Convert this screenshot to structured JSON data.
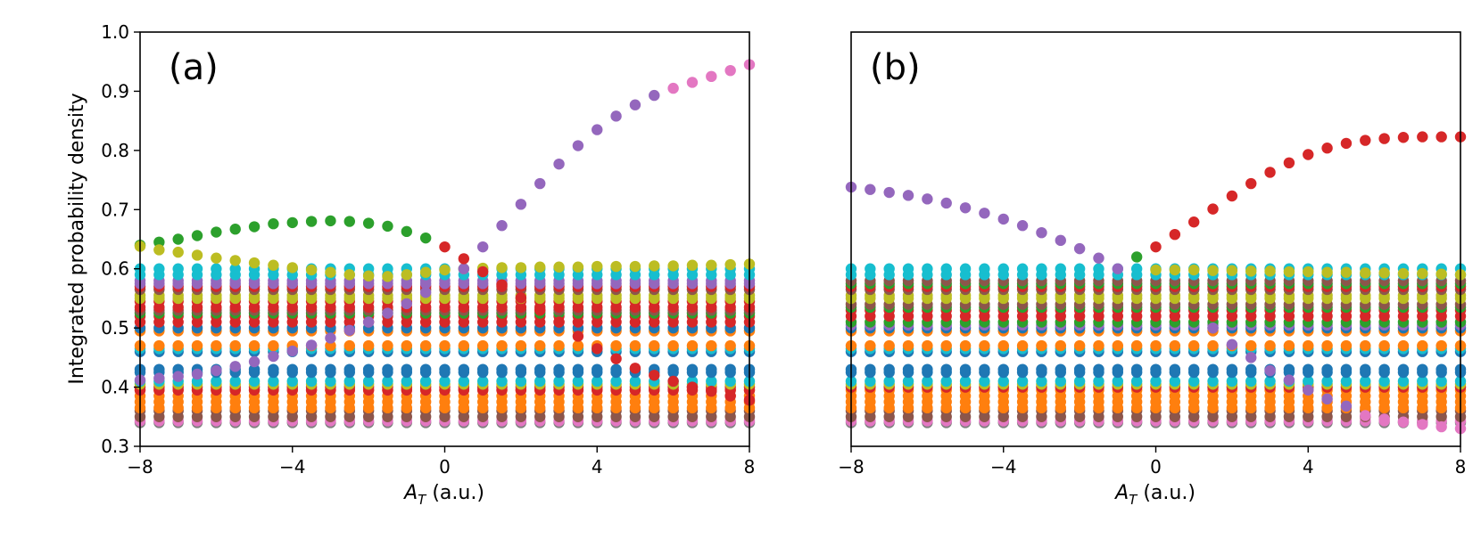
{
  "chart_data": [
    {
      "type": "scatter",
      "panel_label": "(a)",
      "xlabel_base": "A",
      "xlabel_sub": "T",
      "xlabel_unit": " (a.u.)",
      "ylabel": "Integrated probability density",
      "xlim": [
        -8,
        8
      ],
      "ylim": [
        0.3,
        1.0
      ],
      "xticks": [
        -8,
        -4,
        0,
        4,
        8
      ],
      "xtick_labels": [
        "−8",
        "−4",
        "0",
        "4",
        "8"
      ],
      "yticks": [
        0.3,
        0.4,
        0.5,
        0.6,
        0.7,
        0.8,
        0.9,
        1.0
      ],
      "ytick_labels": [
        "0.3",
        "0.4",
        "0.5",
        "0.6",
        "0.7",
        "0.8",
        "0.9",
        "1.0"
      ],
      "bands": [
        {
          "color": "#7f7f7f",
          "values": [
            0.34
          ]
        },
        {
          "color": "#e377c2",
          "values": [
            0.343
          ]
        },
        {
          "color": "#8c564b",
          "values": [
            0.35,
            0.36
          ]
        },
        {
          "color": "#ff7f0e",
          "values": [
            0.365,
            0.375,
            0.385,
            0.395
          ]
        },
        {
          "color": "#d62728",
          "values": [
            0.395,
            0.4
          ]
        },
        {
          "color": "#bcbd22",
          "values": [
            0.405
          ]
        },
        {
          "color": "#17becf",
          "values": [
            0.41
          ]
        },
        {
          "color": "#1f77b4",
          "values": [
            0.425,
            0.43,
            0.46
          ]
        },
        {
          "color": "#17becf",
          "values": [
            0.465
          ]
        },
        {
          "color": "#ff7f0e",
          "values": [
            0.47,
            0.495
          ]
        },
        {
          "color": "#1f77b4",
          "values": [
            0.5
          ]
        },
        {
          "color": "#d62728",
          "values": [
            0.51,
            0.52
          ]
        },
        {
          "color": "#2ca02c",
          "values": [
            0.525
          ]
        },
        {
          "color": "#8c564b",
          "values": [
            0.53
          ]
        },
        {
          "color": "#d62728",
          "values": [
            0.535,
            0.545
          ]
        },
        {
          "color": "#bcbd22",
          "values": [
            0.55,
            0.555
          ]
        },
        {
          "color": "#8c564b",
          "values": [
            0.565
          ]
        },
        {
          "color": "#d62728",
          "values": [
            0.57
          ]
        },
        {
          "color": "#9467bd",
          "values": [
            0.575,
            0.58
          ]
        },
        {
          "color": "#17becf",
          "values": [
            0.59,
            0.6
          ]
        }
      ],
      "series": [
        {
          "name": "green-upper",
          "color": "#2ca02c",
          "x": [
            -8,
            -7.5,
            -7,
            -6.5,
            -6,
            -5.5,
            -5,
            -4.5,
            -4,
            -3.5,
            -3,
            -2.5,
            -2,
            -1.5,
            -1,
            -0.5
          ],
          "y": [
            0.64,
            0.645,
            0.65,
            0.656,
            0.662,
            0.667,
            0.671,
            0.676,
            0.678,
            0.68,
            0.681,
            0.68,
            0.677,
            0.672,
            0.663,
            0.652
          ]
        },
        {
          "name": "olive-dip",
          "color": "#bcbd22",
          "x": [
            -8,
            -7.5,
            -7,
            -6.5,
            -6,
            -5.5,
            -5,
            -4.5,
            -4,
            -3.5,
            -3,
            -2.5,
            -2,
            -1.5,
            -1,
            -0.5,
            0,
            0.5,
            1,
            1.5,
            2,
            2.5,
            3,
            3.5,
            4,
            4.5,
            5,
            5.5,
            6,
            6.5,
            7,
            7.5,
            8
          ],
          "y": [
            0.638,
            0.632,
            0.628,
            0.623,
            0.618,
            0.614,
            0.61,
            0.606,
            0.602,
            0.598,
            0.594,
            0.59,
            0.588,
            0.587,
            0.59,
            0.594,
            0.598,
            0.6,
            0.601,
            0.602,
            0.602,
            0.603,
            0.603,
            0.603,
            0.604,
            0.604,
            0.604,
            0.605,
            0.605,
            0.606,
            0.606,
            0.607,
            0.608
          ]
        },
        {
          "name": "purple-curve",
          "color": "#9467bd",
          "x": [
            -8,
            -7.5,
            -7,
            -6.5,
            -6,
            -5.5,
            -5,
            -4.5,
            -4,
            -3.5,
            -3,
            -2.5,
            -2,
            -1.5,
            -1,
            -0.5,
            0.5,
            1,
            1.5,
            2,
            2.5,
            3,
            3.5,
            4,
            4.5,
            5,
            5.5
          ],
          "y": [
            0.412,
            0.415,
            0.418,
            0.422,
            0.428,
            0.435,
            0.443,
            0.452,
            0.461,
            0.471,
            0.483,
            0.496,
            0.51,
            0.525,
            0.541,
            0.56,
            0.6,
            0.637,
            0.673,
            0.709,
            0.744,
            0.777,
            0.808,
            0.835,
            0.858,
            0.877,
            0.893
          ]
        },
        {
          "name": "pink-tail",
          "color": "#e377c2",
          "x": [
            6,
            6.5,
            7,
            7.5,
            8
          ],
          "y": [
            0.905,
            0.915,
            0.925,
            0.935,
            0.945
          ]
        },
        {
          "name": "red-descent",
          "color": "#d62728",
          "x": [
            0,
            0.5,
            1,
            1.5,
            2,
            2.5,
            3,
            3.5,
            4,
            4.5,
            5,
            5.5,
            6,
            6.5,
            7,
            7.5,
            8
          ],
          "y": [
            0.637,
            0.617,
            0.595,
            0.573,
            0.551,
            0.53,
            0.51,
            0.486,
            0.465,
            0.448,
            0.432,
            0.42,
            0.41,
            0.4,
            0.393,
            0.385,
            0.378
          ]
        }
      ]
    },
    {
      "type": "scatter",
      "panel_label": "(b)",
      "xlabel_base": "A",
      "xlabel_sub": "T",
      "xlabel_unit": " (a.u.)",
      "ylabel": "",
      "xlim": [
        -8,
        8
      ],
      "ylim": [
        0.3,
        1.0
      ],
      "xticks": [
        -8,
        -4,
        0,
        4,
        8
      ],
      "xtick_labels": [
        "−8",
        "−4",
        "0",
        "4",
        "8"
      ],
      "yticks": [],
      "ytick_labels": [],
      "bands": [
        {
          "color": "#7f7f7f",
          "values": [
            0.34
          ]
        },
        {
          "color": "#e377c2",
          "values": [
            0.343
          ]
        },
        {
          "color": "#8c564b",
          "values": [
            0.35,
            0.36
          ]
        },
        {
          "color": "#ff7f0e",
          "values": [
            0.365,
            0.375,
            0.385,
            0.395
          ]
        },
        {
          "color": "#d62728",
          "values": [
            0.4
          ]
        },
        {
          "color": "#bcbd22",
          "values": [
            0.405
          ]
        },
        {
          "color": "#17becf",
          "values": [
            0.41
          ]
        },
        {
          "color": "#1f77b4",
          "values": [
            0.425,
            0.43,
            0.46
          ]
        },
        {
          "color": "#17becf",
          "values": [
            0.465
          ]
        },
        {
          "color": "#ff7f0e",
          "values": [
            0.47,
            0.495
          ]
        },
        {
          "color": "#1f77b4",
          "values": [
            0.5
          ]
        },
        {
          "color": "#9467bd",
          "values": [
            0.505
          ]
        },
        {
          "color": "#2ca02c",
          "values": [
            0.51
          ]
        },
        {
          "color": "#d62728",
          "values": [
            0.52,
            0.53
          ]
        },
        {
          "color": "#2ca02c",
          "values": [
            0.535
          ]
        },
        {
          "color": "#8c564b",
          "values": [
            0.54
          ]
        },
        {
          "color": "#bcbd22",
          "values": [
            0.55,
            0.555
          ]
        },
        {
          "color": "#8c564b",
          "values": [
            0.565
          ]
        },
        {
          "color": "#d62728",
          "values": [
            0.57
          ]
        },
        {
          "color": "#2ca02c",
          "values": [
            0.575
          ]
        },
        {
          "color": "#8c564b",
          "values": [
            0.58
          ]
        },
        {
          "color": "#17becf",
          "values": [
            0.59,
            0.6
          ]
        }
      ],
      "series": [
        {
          "name": "purple-descent",
          "color": "#9467bd",
          "x": [
            -8,
            -7.5,
            -7,
            -6.5,
            -6,
            -5.5,
            -5,
            -4.5,
            -4,
            -3.5,
            -3,
            -2.5,
            -2,
            -1.5,
            -1
          ],
          "y": [
            0.738,
            0.734,
            0.729,
            0.724,
            0.718,
            0.711,
            0.703,
            0.694,
            0.684,
            0.673,
            0.661,
            0.648,
            0.634,
            0.618,
            0.6
          ]
        },
        {
          "name": "green-link",
          "color": "#2ca02c",
          "x": [
            -0.5
          ],
          "y": [
            0.62
          ]
        },
        {
          "name": "red-rise",
          "color": "#d62728",
          "x": [
            0,
            0.5,
            1,
            1.5,
            2,
            2.5,
            3,
            3.5,
            4,
            4.5,
            5,
            5.5,
            6,
            6.5,
            7,
            7.5,
            8
          ],
          "y": [
            0.637,
            0.658,
            0.679,
            0.701,
            0.723,
            0.744,
            0.763,
            0.779,
            0.793,
            0.804,
            0.812,
            0.817,
            0.82,
            0.822,
            0.823,
            0.823,
            0.823
          ]
        },
        {
          "name": "olive-top",
          "color": "#bcbd22",
          "x": [
            0,
            0.5,
            1,
            1.5,
            2,
            2.5,
            3,
            3.5,
            4,
            4.5,
            5,
            5.5,
            6,
            6.5,
            7,
            7.5,
            8
          ],
          "y": [
            0.598,
            0.598,
            0.598,
            0.597,
            0.597,
            0.596,
            0.596,
            0.595,
            0.595,
            0.594,
            0.594,
            0.593,
            0.593,
            0.592,
            0.592,
            0.591,
            0.59
          ]
        },
        {
          "name": "purple-low",
          "color": "#9467bd",
          "x": [
            1.5,
            2,
            2.5,
            3,
            3.5,
            4,
            4.5,
            5
          ],
          "y": [
            0.5,
            0.472,
            0.45,
            0.428,
            0.412,
            0.395,
            0.38,
            0.368
          ]
        },
        {
          "name": "pink-low",
          "color": "#e377c2",
          "x": [
            5.5,
            6,
            6.5,
            7,
            7.5,
            8
          ],
          "y": [
            0.352,
            0.346,
            0.341,
            0.337,
            0.333,
            0.33
          ]
        }
      ]
    }
  ]
}
